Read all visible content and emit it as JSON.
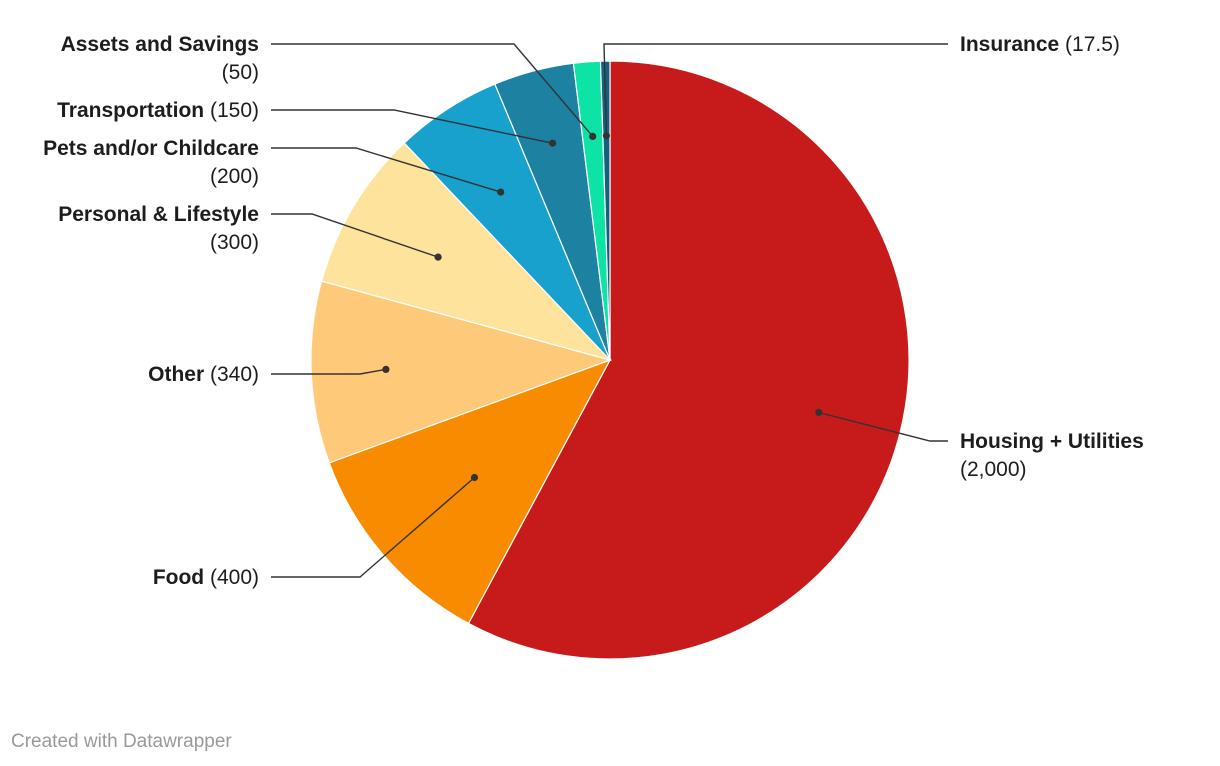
{
  "chart_data": {
    "type": "pie",
    "start": "top",
    "direction": "clockwise",
    "slices": [
      {
        "name": "Housing + Utilities",
        "value": 2000,
        "value_label": "(2,000)",
        "color": "#c71b1b"
      },
      {
        "name": "Food",
        "value": 400,
        "value_label": "(400)",
        "color": "#f88b00"
      },
      {
        "name": "Other",
        "value": 340,
        "value_label": "(340)",
        "color": "#fec978"
      },
      {
        "name": "Personal & Lifestyle",
        "value": 300,
        "value_label": "(300)",
        "color": "#fee39d"
      },
      {
        "name": "Pets and/or Childcare",
        "value": 200,
        "value_label": "(200)",
        "color": "#18a1cd"
      },
      {
        "name": "Transportation",
        "value": 150,
        "value_label": "(150)",
        "color": "#1d81a2"
      },
      {
        "name": "Assets and Savings",
        "value": 50,
        "value_label": "(50)",
        "color": "#0ee3a6"
      },
      {
        "name": "Insurance",
        "value": 17.5,
        "value_label": "(17.5)",
        "color": "#15607a"
      }
    ]
  },
  "footer": {
    "credit": "Created with Datawrapper"
  }
}
